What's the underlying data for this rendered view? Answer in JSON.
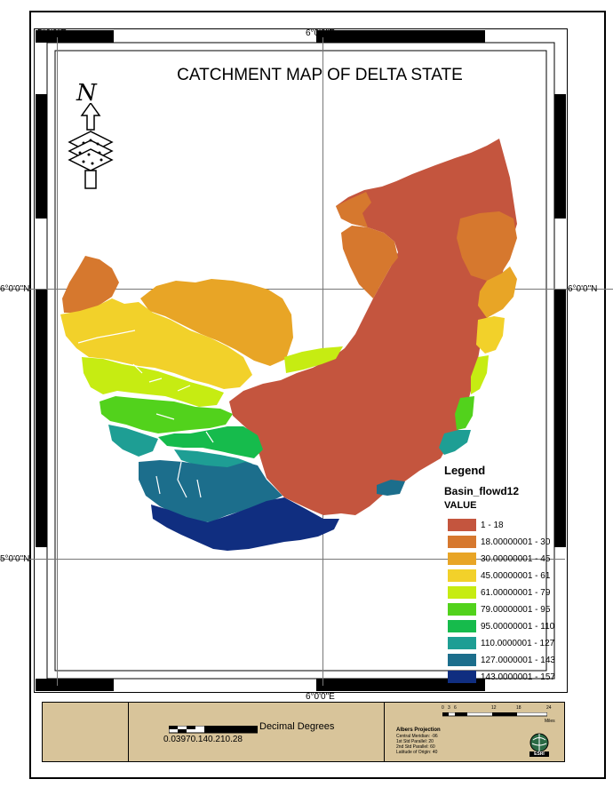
{
  "map": {
    "title": "CATCHMENT MAP OF DELTA STATE",
    "grid_labels": {
      "top_left": "5°0'0\"E",
      "top_center": "6°0'0\"E",
      "bottom_center": "6°0'0\"E",
      "left_upper": "6°0'0\"N",
      "right_upper": "6°0'0\"N",
      "left_lower": "5°0'0\"N"
    },
    "north_letter": "N"
  },
  "legend": {
    "title": "Legend",
    "layer": "Basin_flowd12",
    "field": "VALUE",
    "items": [
      {
        "label": "1 - 18",
        "color": "#c4553e"
      },
      {
        "label": "18.00000001 - 30",
        "color": "#d6782e"
      },
      {
        "label": "30.00000001 - 45",
        "color": "#e8a526"
      },
      {
        "label": "45.00000001 - 61",
        "color": "#f2d12a"
      },
      {
        "label": "61.00000001 - 79",
        "color": "#c6ec12"
      },
      {
        "label": "79.00000001 - 95",
        "color": "#52d21c"
      },
      {
        "label": "95.00000001 - 110",
        "color": "#16bb4c"
      },
      {
        "label": "110.0000001 - 127",
        "color": "#1e9e94"
      },
      {
        "label": "127.0000001 - 143",
        "color": "#1c6e8c"
      },
      {
        "label": "143.0000001 - 157",
        "color": "#102e80"
      }
    ]
  },
  "panel": {
    "scale_text": "Decimal Degrees",
    "scale_ticks": "0.03970.140.210.28",
    "miles_ticks": [
      "0",
      "3",
      "6",
      "12",
      "18",
      "24"
    ],
    "miles_unit": "Miles",
    "projection_title": "Albers Projection",
    "projection_lines": [
      "Central Meridian: -96",
      "1st Std Parallel: 20",
      "2nd Std Parallel: 60",
      "Latitude of Origin: 40"
    ],
    "logo_text": "ESRI"
  }
}
